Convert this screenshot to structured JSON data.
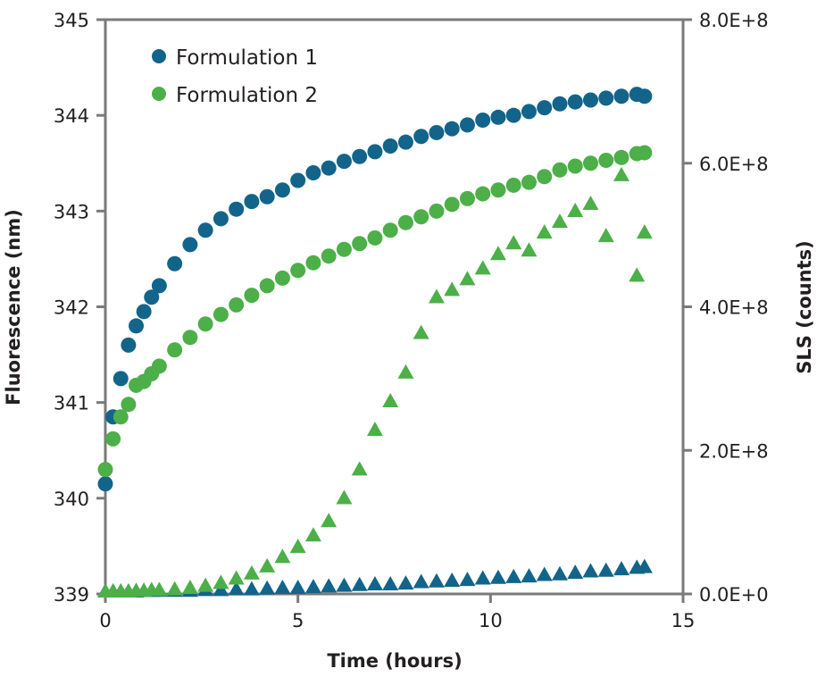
{
  "chart_data": {
    "type": "scatter",
    "xlabel": "Time (hours)",
    "ylabel": "Fluorescence (nm)",
    "y2label": "SLS (counts)",
    "xlim": [
      0,
      15
    ],
    "ylim": [
      339,
      345
    ],
    "y2lim": [
      0,
      800000000
    ],
    "x_ticks": [
      "0",
      "5",
      "10",
      "15"
    ],
    "y_ticks": [
      "339",
      "340",
      "341",
      "342",
      "343",
      "344",
      "345"
    ],
    "y2_ticks": [
      "0.0E+0",
      "2.0E+8",
      "4.0E+8",
      "6.0E+8",
      "8.0E+8"
    ],
    "grid": false,
    "legend_position": "top-left",
    "legend": [
      {
        "label": "Formulation 1",
        "color": "#12648a"
      },
      {
        "label": "Formulation 2",
        "color": "#4caf48"
      }
    ],
    "x": [
      0,
      0.2,
      0.4,
      0.6,
      0.8,
      1.0,
      1.2,
      1.4,
      1.8,
      2.2,
      2.6,
      3.0,
      3.4,
      3.8,
      4.2,
      4.6,
      5.0,
      5.4,
      5.8,
      6.2,
      6.6,
      7.0,
      7.4,
      7.8,
      8.2,
      8.6,
      9.0,
      9.4,
      9.8,
      10.2,
      10.6,
      11.0,
      11.4,
      11.8,
      12.2,
      12.6,
      13.0,
      13.4,
      13.8,
      14.0
    ],
    "series": [
      {
        "formulation": "Formulation 1",
        "axis": "left",
        "marker": "circle",
        "color": "#12648a",
        "values": [
          340.15,
          340.85,
          341.25,
          341.6,
          341.8,
          341.95,
          342.1,
          342.22,
          342.45,
          342.65,
          342.8,
          342.92,
          343.02,
          343.1,
          343.15,
          343.22,
          343.32,
          343.4,
          343.45,
          343.52,
          343.57,
          343.62,
          343.68,
          343.72,
          343.78,
          343.82,
          343.86,
          343.9,
          343.95,
          343.98,
          344.0,
          344.04,
          344.08,
          344.12,
          344.14,
          344.16,
          344.18,
          344.2,
          344.22,
          344.2
        ]
      },
      {
        "formulation": "Formulation 2",
        "axis": "left",
        "marker": "circle",
        "color": "#4caf48",
        "values": [
          340.3,
          340.62,
          340.85,
          340.98,
          341.18,
          341.22,
          341.3,
          341.38,
          341.55,
          341.68,
          341.82,
          341.92,
          342.02,
          342.12,
          342.22,
          342.3,
          342.38,
          342.46,
          342.53,
          342.6,
          342.66,
          342.72,
          342.8,
          342.88,
          342.94,
          343.0,
          343.07,
          343.13,
          343.18,
          343.22,
          343.27,
          343.3,
          343.36,
          343.43,
          343.47,
          343.5,
          343.53,
          343.56,
          343.6,
          343.61
        ]
      },
      {
        "formulation": "Formulation 2",
        "axis": "right",
        "marker": "triangle",
        "color": "#4caf48",
        "values": [
          0,
          0,
          0,
          0,
          1000000.0,
          1000000.0,
          2000000.0,
          2000000.0,
          3000000.0,
          5000000.0,
          8000000.0,
          12000000.0,
          18000000.0,
          25000000.0,
          35000000.0,
          48000000.0,
          62000000.0,
          78000000.0,
          98000000.0,
          130000000.0,
          170000000.0,
          225000000.0,
          265000000.0,
          305000000.0,
          360000000.0,
          410000000.0,
          420000000.0,
          435000000.0,
          450000000.0,
          470000000.0,
          485000000.0,
          475000000.0,
          500000000.0,
          515000000.0,
          530000000.0,
          540000000.0,
          495000000.0,
          580000000.0,
          440000000.0,
          500000000.0
        ]
      },
      {
        "formulation": "Formulation 1",
        "axis": "right",
        "marker": "triangle",
        "color": "#12648a",
        "values": [
          0,
          0,
          0,
          0,
          0,
          1000000.0,
          1000000.0,
          1000000.0,
          1000000.0,
          1000000.0,
          2000000.0,
          2000000.0,
          3000000.0,
          3000000.0,
          4000000.0,
          5000000.0,
          5000000.0,
          6000000.0,
          7000000.0,
          8000000.0,
          9000000.0,
          10000000.0,
          10000000.0,
          11000000.0,
          13000000.0,
          14000000.0,
          15000000.0,
          16000000.0,
          18000000.0,
          19000000.0,
          20000000.0,
          21000000.0,
          23000000.0,
          24000000.0,
          26000000.0,
          28000000.0,
          29000000.0,
          31000000.0,
          33000000.0,
          34000000.0
        ]
      }
    ]
  }
}
